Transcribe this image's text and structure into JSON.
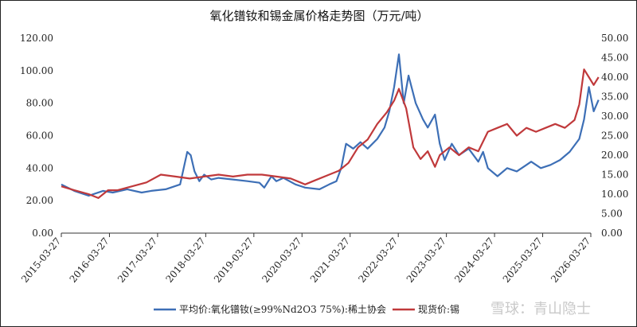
{
  "chart_data": {
    "type": "line",
    "title": "氧化镨钕和锡金属价格走势图（万元/吨）",
    "x_ticks": [
      "2015-03-27",
      "2016-03-27",
      "2017-03-27",
      "2018-03-27",
      "2019-03-27",
      "2020-03-27",
      "2021-03-27",
      "2022-03-27",
      "2023-03-27",
      "2024-03-27",
      "2025-03-27",
      "2026-03-27"
    ],
    "y_left": {
      "ylim": [
        0,
        120
      ],
      "ticks": [
        "0.00",
        "20.00",
        "40.00",
        "60.00",
        "80.00",
        "100.00",
        "120.00"
      ]
    },
    "y_right": {
      "ylim": [
        0,
        50
      ],
      "ticks": [
        "0.00",
        "5.00",
        "10.00",
        "15.00",
        "20.00",
        "25.00",
        "30.00",
        "35.00",
        "40.00",
        "45.00",
        "50.00"
      ]
    },
    "series": [
      {
        "name": "平均价:氧化镨钕(≥99%Nd2O3 75%):稀土协会",
        "axis": "left",
        "color": "#3d6fb6",
        "x": [
          2015.23,
          2015.5,
          2015.8,
          2016.1,
          2016.3,
          2016.6,
          2016.9,
          2017.1,
          2017.4,
          2017.7,
          2017.85,
          2017.92,
          2018.0,
          2018.1,
          2018.2,
          2018.35,
          2018.5,
          2018.8,
          2019.1,
          2019.35,
          2019.45,
          2019.6,
          2019.7,
          2019.85,
          2020.1,
          2020.3,
          2020.6,
          2020.8,
          2020.95,
          2021.05,
          2021.15,
          2021.3,
          2021.45,
          2021.6,
          2021.8,
          2021.95,
          2022.05,
          2022.15,
          2022.25,
          2022.35,
          2022.45,
          2022.6,
          2022.75,
          2022.85,
          2023.0,
          2023.1,
          2023.2,
          2023.35,
          2023.5,
          2023.7,
          2023.9,
          2024.0,
          2024.1,
          2024.3,
          2024.5,
          2024.7,
          2024.9,
          2025.0,
          2025.2,
          2025.4,
          2025.6,
          2025.8,
          2026.0,
          2026.1,
          2026.2,
          2026.3,
          2026.4
        ],
        "values": [
          30,
          26,
          23,
          26,
          25,
          27,
          25,
          26,
          27,
          30,
          50,
          48,
          38,
          32,
          36,
          33,
          34,
          33,
          32,
          31,
          28,
          35,
          32,
          34,
          30,
          28,
          27,
          30,
          32,
          40,
          55,
          52,
          56,
          52,
          58,
          65,
          75,
          90,
          110,
          80,
          97,
          80,
          70,
          65,
          73,
          55,
          45,
          55,
          48,
          52,
          44,
          50,
          40,
          35,
          40,
          38,
          42,
          44,
          40,
          42,
          45,
          50,
          58,
          70,
          90,
          75,
          82
        ]
      },
      {
        "name": "现货价:锡",
        "axis": "right",
        "color": "#c0393b",
        "x": [
          2015.23,
          2015.5,
          2015.8,
          2016.0,
          2016.2,
          2016.4,
          2016.7,
          2017.0,
          2017.3,
          2017.6,
          2017.9,
          2018.2,
          2018.5,
          2018.8,
          2019.1,
          2019.4,
          2019.7,
          2020.0,
          2020.2,
          2020.3,
          2020.5,
          2020.8,
          2021.0,
          2021.2,
          2021.4,
          2021.6,
          2021.8,
          2022.0,
          2022.15,
          2022.25,
          2022.4,
          2022.55,
          2022.7,
          2022.85,
          2023.0,
          2023.1,
          2023.3,
          2023.5,
          2023.7,
          2023.9,
          2024.1,
          2024.3,
          2024.5,
          2024.7,
          2024.9,
          2025.1,
          2025.3,
          2025.5,
          2025.7,
          2025.9,
          2026.0,
          2026.1,
          2026.2,
          2026.3,
          2026.4
        ],
        "values": [
          12,
          11,
          10,
          9,
          11,
          11,
          12,
          13,
          15,
          14.5,
          14,
          14.5,
          15,
          14.5,
          15,
          15,
          14.5,
          14,
          13,
          12.5,
          13.5,
          15,
          16,
          18,
          22,
          24,
          28,
          31,
          34,
          37,
          32,
          22,
          19,
          21,
          17,
          20,
          22,
          20,
          22,
          21,
          26,
          27,
          28,
          25,
          27,
          26,
          27,
          28,
          27,
          29,
          33,
          42,
          40,
          38,
          40
        ]
      }
    ],
    "legend_position": "bottom",
    "grid": false
  },
  "watermark": "雪球：青山隐士"
}
